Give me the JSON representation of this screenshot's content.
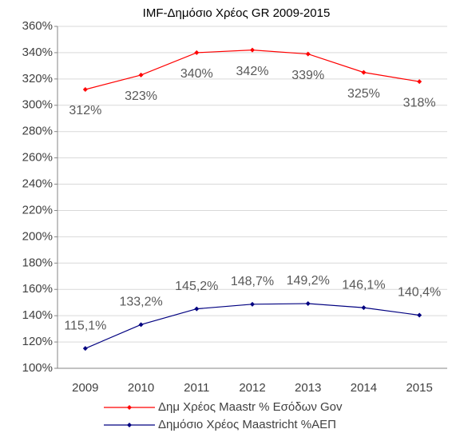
{
  "chart_data": {
    "type": "line",
    "title": "IMF-Δημόσιο Χρέος GR 2009-2015",
    "categories": [
      "2009",
      "2010",
      "2011",
      "2012",
      "2013",
      "2014",
      "2015"
    ],
    "series": [
      {
        "name": "Δημ Χρέος Maastr % Εσόδων Gov",
        "color": "#ff0000",
        "values": [
          312,
          323,
          340,
          342,
          339,
          325,
          318
        ],
        "value_labels": [
          "312%",
          "323%",
          "340%",
          "342%",
          "339%",
          "325%",
          "318%"
        ]
      },
      {
        "name": "Δημόσιο Χρέος Maastricht %ΑΕΠ",
        "color": "#000080",
        "values": [
          115.1,
          133.2,
          145.2,
          148.7,
          149.2,
          146.1,
          140.4
        ],
        "value_labels": [
          "115,1%",
          "133,2%",
          "145,2%",
          "148,7%",
          "149,2%",
          "146,1%",
          "140,4%"
        ]
      }
    ],
    "ylim": [
      100,
      360
    ],
    "yticks": [
      {
        "value": 100,
        "label": "100%"
      },
      {
        "value": 120,
        "label": "120%"
      },
      {
        "value": 140,
        "label": "140%"
      },
      {
        "value": 160,
        "label": "160%"
      },
      {
        "value": 180,
        "label": "180%"
      },
      {
        "value": 200,
        "label": "200%"
      },
      {
        "value": 220,
        "label": "220%"
      },
      {
        "value": 240,
        "label": "240%"
      },
      {
        "value": 260,
        "label": "260%"
      },
      {
        "value": 280,
        "label": "280%"
      },
      {
        "value": 300,
        "label": "300%"
      },
      {
        "value": 320,
        "label": "320%"
      },
      {
        "value": 340,
        "label": "340%"
      },
      {
        "value": 360,
        "label": "360%"
      }
    ],
    "grid": true,
    "legend": "bottom"
  }
}
